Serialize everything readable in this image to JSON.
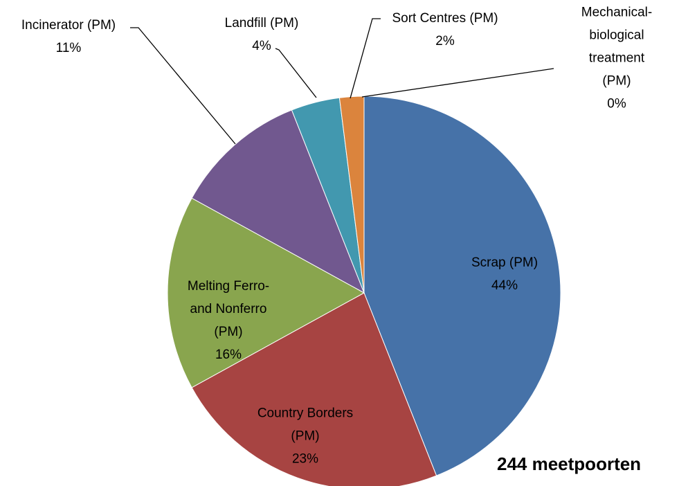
{
  "chart_data": {
    "type": "pie",
    "categories": [
      "Scrap (PM)",
      "Country Borders\n(PM)",
      "Melting Ferro-\nand Nonferro\n(PM)",
      "Incinerator (PM)",
      "Landfill (PM)",
      "Sort Centres (PM)",
      "Mechanical-\nbiological\ntreatment (PM)"
    ],
    "values": [
      44,
      23,
      16,
      11,
      4,
      2,
      0
    ],
    "value_labels": [
      "44%",
      "23%",
      "16%",
      "11%",
      "4%",
      "2%",
      "0%"
    ],
    "colors": [
      "#4672a8",
      "#a74442",
      "#89a54e",
      "#71588f",
      "#4298af",
      "#db843d",
      "#93a9cf"
    ],
    "annotation": "244 meetpoorten"
  }
}
